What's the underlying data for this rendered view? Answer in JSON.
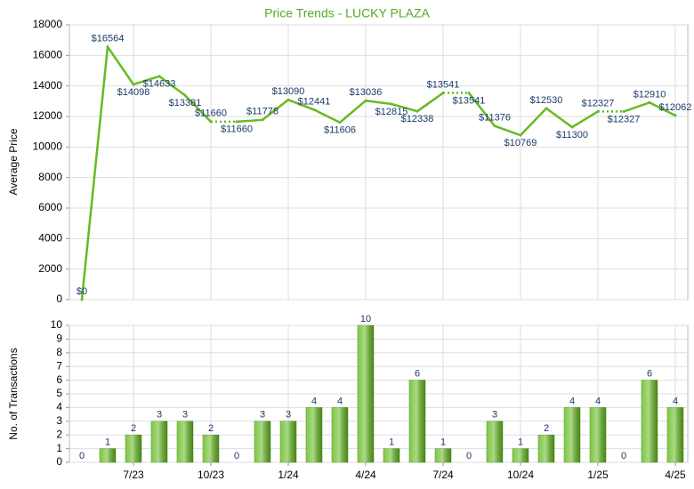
{
  "chart_data": [
    {
      "type": "line",
      "title": "Price Trends - LUCKY PLAZA",
      "y_label": "Average Price",
      "values": [
        0,
        16564,
        14098,
        14633,
        13381,
        11660,
        11660,
        11778,
        13090,
        12441,
        11606,
        13036,
        12815,
        12338,
        13541,
        13541,
        11376,
        10769,
        12530,
        11300,
        12327,
        12327,
        12910,
        12062
      ],
      "value_labels": [
        "$0",
        "$16564",
        "$14098",
        "$14633",
        "$13381",
        "$11660",
        "$11660",
        "$11778",
        "$13090",
        "$12441",
        "$11606",
        "$13036",
        "$12815",
        "$12338",
        "$13541",
        "$13541",
        "$11376",
        "$10769",
        "$12530",
        "$11300",
        "$12327",
        "$12327",
        "$12910",
        "$12062"
      ],
      "color": "#66bb22",
      "ylim": [
        0,
        18000
      ],
      "yticks": [
        0,
        2000,
        4000,
        6000,
        8000,
        10000,
        12000,
        14000,
        16000,
        18000
      ],
      "grid": true
    },
    {
      "type": "bar",
      "y_label": "No. of Transactions",
      "categories": [
        null,
        null,
        "7/23",
        null,
        null,
        "10/23",
        null,
        null,
        "1/24",
        null,
        null,
        "4/24",
        null,
        null,
        "7/24",
        null,
        null,
        "10/24",
        null,
        null,
        "1/25",
        null,
        null,
        "4/25"
      ],
      "values": [
        0,
        1,
        2,
        3,
        3,
        2,
        0,
        3,
        3,
        4,
        4,
        10,
        1,
        6,
        1,
        0,
        3,
        1,
        2,
        4,
        4,
        0,
        6,
        4
      ],
      "color": "#66bb22",
      "ylim": [
        0,
        10
      ],
      "yticks": [
        0,
        1,
        2,
        3,
        4,
        5,
        6,
        7,
        8,
        9,
        10
      ],
      "grid": true
    }
  ]
}
